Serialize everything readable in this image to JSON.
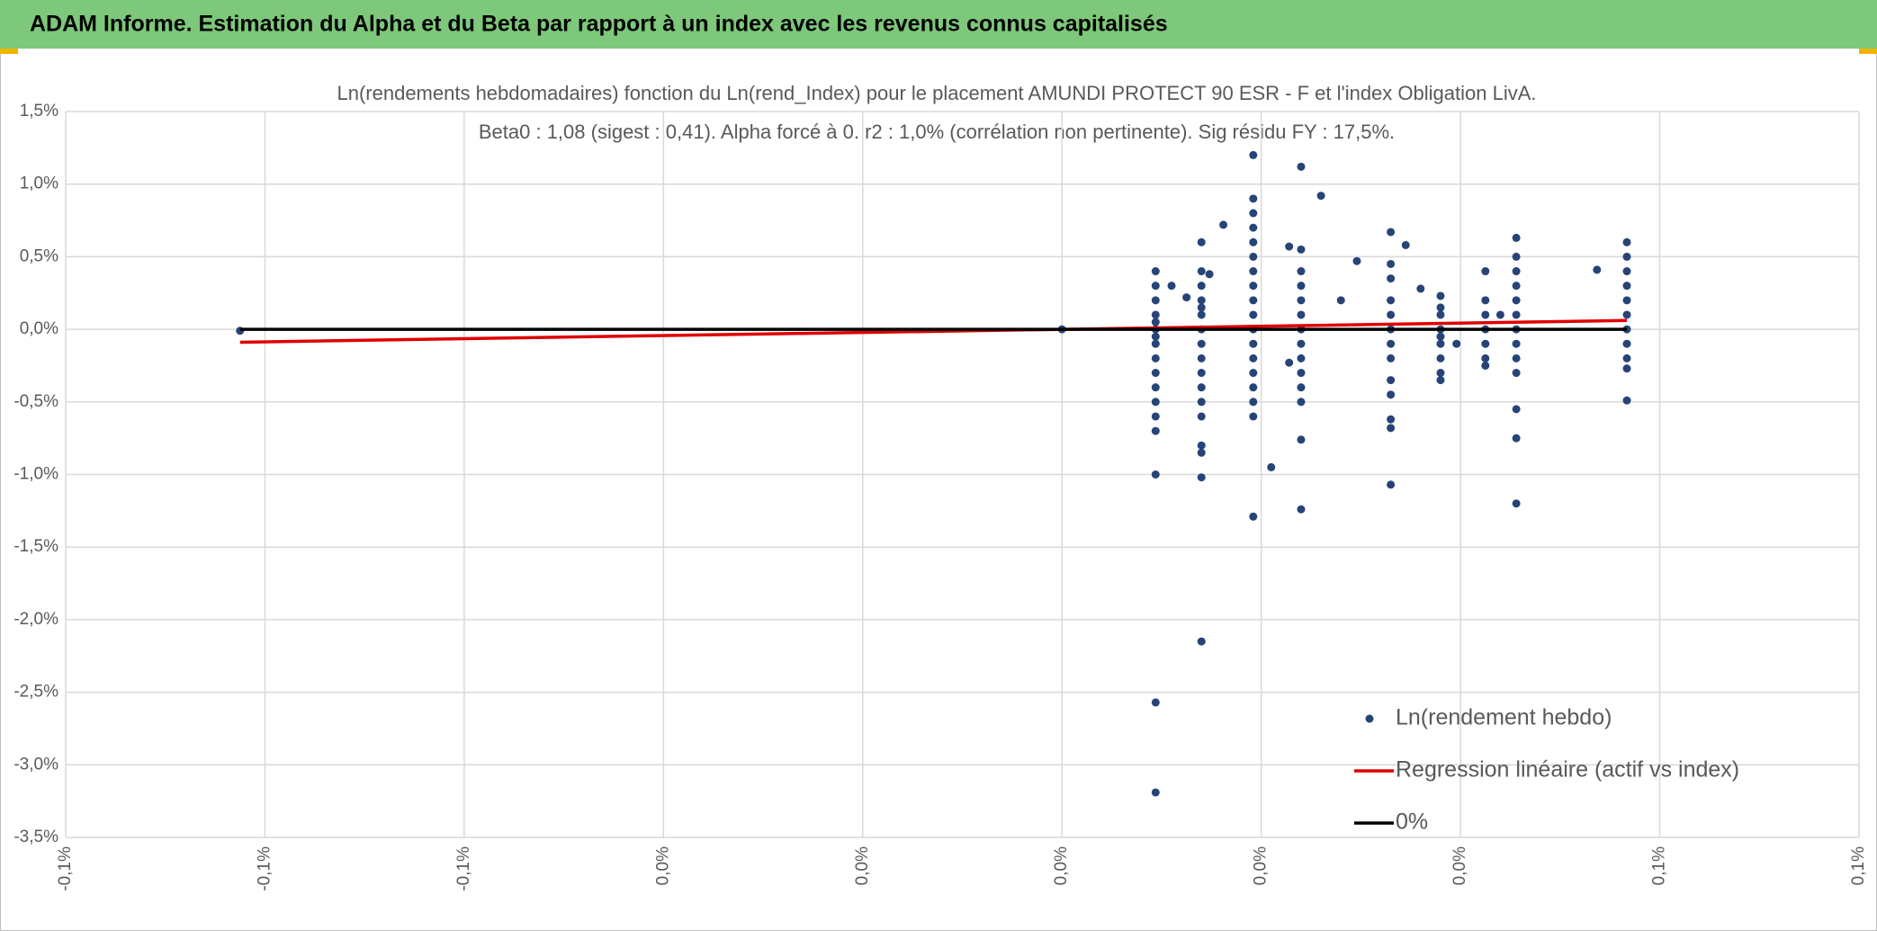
{
  "header": {
    "title": "ADAM Informe. Estimation du Alpha et du Beta par rapport à un index avec les revenus connus capitalisés"
  },
  "chart_data": {
    "type": "scatter",
    "title": "Ln(rendements hebdomadaires) fonction du Ln(rend_Index) pour le placement AMUNDI PROTECT 90 ESR - F et l'index Obligation LivA.",
    "subtitle": "Beta0 : 1,08 (sigest : 0,41). Alpha forcé à 0. r2 : 1,0% (corrélation non pertinente). Sig résidu FY : 17,5%.",
    "xlim": [
      -0.1,
      0.08
    ],
    "xticks": [
      {
        "value": -0.1,
        "label": "-0,1%"
      },
      {
        "value": -0.08,
        "label": "-0,1%"
      },
      {
        "value": -0.06,
        "label": "-0,1%"
      },
      {
        "value": -0.04,
        "label": "0,0%"
      },
      {
        "value": -0.02,
        "label": "0,0%"
      },
      {
        "value": 0,
        "label": "0,0%"
      },
      {
        "value": 0.02,
        "label": "0,0%"
      },
      {
        "value": 0.04,
        "label": "0,0%"
      },
      {
        "value": 0.06,
        "label": "0,1%"
      },
      {
        "value": 0.08,
        "label": "0,1%"
      }
    ],
    "ylim": [
      -3.5,
      1.5
    ],
    "yticks": [
      {
        "value": 1.5,
        "label": "1,5%"
      },
      {
        "value": 1.0,
        "label": "1,0%"
      },
      {
        "value": 0.5,
        "label": "0,5%"
      },
      {
        "value": 0,
        "label": "0,0%"
      },
      {
        "value": -0.5,
        "label": "-0,5%"
      },
      {
        "value": -1.0,
        "label": "-1,0%"
      },
      {
        "value": -1.5,
        "label": "-1,5%"
      },
      {
        "value": -2.0,
        "label": "-2,0%"
      },
      {
        "value": -2.5,
        "label": "-2,5%"
      },
      {
        "value": -3.0,
        "label": "-3,0%"
      },
      {
        "value": -3.5,
        "label": "-3,5%"
      }
    ],
    "grid": true,
    "legend": "lower right",
    "series": [
      {
        "name": "Ln(rendement hebdo)",
        "type": "scatter",
        "color": "#264478",
        "x": [
          0.0094,
          0.0094,
          0.0094,
          0.0094,
          0.0094,
          0.0094,
          0.0094,
          0.0094,
          0.0094,
          0.0094,
          0.0094,
          0.0094,
          0.0094,
          0.0094,
          0.0094,
          0.0094,
          0.0094,
          0.014,
          0.014,
          0.014,
          0.014,
          0.014,
          0.014,
          0.014,
          0.014,
          0.014,
          0.014,
          0.014,
          0.014,
          0.014,
          0.014,
          0.014,
          0.014,
          0.014,
          0.0192,
          0.0192,
          0.0192,
          0.0192,
          0.0192,
          0.0192,
          0.0192,
          0.0192,
          0.0192,
          0.0192,
          0.0192,
          0.0192,
          0.0192,
          0.0192,
          0.0192,
          0.0192,
          0.0192,
          0.0192,
          0.024,
          0.024,
          0.024,
          0.024,
          0.024,
          0.024,
          0.024,
          0.024,
          0.024,
          0.024,
          0.024,
          0.024,
          0.024,
          0.024,
          0.033,
          0.033,
          0.033,
          0.033,
          0.033,
          0.033,
          0.033,
          0.033,
          0.033,
          0.033,
          0.033,
          0.033,
          0.033,
          0.038,
          0.038,
          0.038,
          0.038,
          0.038,
          0.038,
          0.038,
          0.038,
          0.038,
          0.0425,
          0.0425,
          0.0425,
          0.0425,
          0.0425,
          0.0425,
          0.0425,
          0.0456,
          0.0456,
          0.0456,
          0.0456,
          0.0456,
          0.0456,
          0.0456,
          0.0456,
          0.0456,
          0.0456,
          0.0456,
          0.0456,
          0.0456,
          0.0567,
          0.0567,
          0.0567,
          0.0567,
          0.0567,
          0.0567,
          0.0567,
          0.0567,
          0.0567,
          0.0567,
          0.0567,
          0.011,
          0.0125,
          0.0162,
          0.0148,
          0.021,
          0.0228,
          0.0228,
          0.026,
          0.028,
          0.0296,
          0.0345,
          0.036,
          0.0396,
          0.0537,
          -0.0825,
          0,
          0.044
        ],
        "values": [
          0.4,
          0.3,
          0.2,
          0.1,
          0.05,
          0,
          -0.05,
          -0.1,
          -0.2,
          -0.3,
          -0.4,
          -0.5,
          -0.6,
          -0.7,
          -1.0,
          -2.57,
          -3.19,
          0.6,
          0.4,
          0.3,
          0.2,
          0.15,
          0.1,
          0,
          -0.1,
          -0.2,
          -0.3,
          -0.4,
          -0.5,
          -0.6,
          -0.8,
          -0.85,
          -1.02,
          -2.15,
          1.2,
          0.9,
          0.8,
          0.7,
          0.6,
          0.5,
          0.4,
          0.3,
          0.2,
          0.1,
          0,
          -0.1,
          -0.2,
          -0.3,
          -0.4,
          -0.5,
          -0.6,
          -1.29,
          1.12,
          0.55,
          0.4,
          0.3,
          0.2,
          0.1,
          0,
          -0.1,
          -0.2,
          -0.3,
          -0.4,
          -0.5,
          -0.76,
          -1.24,
          0.67,
          0.45,
          0.35,
          0.2,
          0.1,
          0,
          -0.1,
          -0.2,
          -0.35,
          -0.45,
          -0.62,
          -0.68,
          -1.07,
          0.23,
          0.15,
          0.1,
          0,
          -0.05,
          -0.1,
          -0.2,
          -0.3,
          -0.35,
          0.4,
          0.2,
          0.1,
          0,
          -0.1,
          -0.2,
          -0.25,
          0.63,
          0.5,
          0.4,
          0.3,
          0.2,
          0.1,
          0,
          -0.1,
          -0.2,
          -0.3,
          -0.55,
          -0.75,
          -1.2,
          0.6,
          0.5,
          0.4,
          0.3,
          0.2,
          0.1,
          0,
          -0.1,
          -0.2,
          -0.27,
          -0.49,
          0.3,
          0.22,
          0.72,
          0.38,
          -0.95,
          0.57,
          -0.23,
          0.92,
          0.2,
          0.47,
          0.58,
          0.28,
          -0.1,
          0.41,
          -0.01,
          0,
          0.1
        ]
      },
      {
        "name": "Regression linéaire (actif vs index)",
        "type": "line",
        "color": "#e00000",
        "x": [
          -0.0825,
          0.0567
        ],
        "values": [
          -0.089,
          0.061
        ]
      },
      {
        "name": "0%",
        "type": "line",
        "color": "#000000",
        "x": [
          -0.0825,
          0.0567
        ],
        "values": [
          0,
          0
        ]
      }
    ]
  }
}
